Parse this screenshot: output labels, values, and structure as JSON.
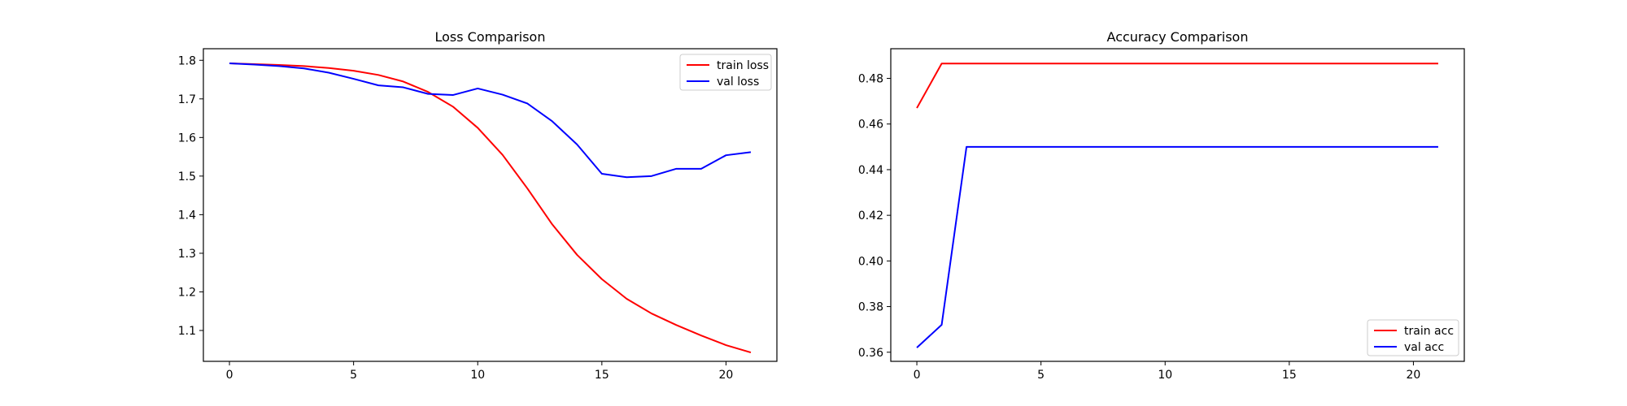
{
  "colors": {
    "red": "#ff0000",
    "blue": "#0000ff",
    "axes": "#000000",
    "legend_border": "#cccccc"
  },
  "chart_data": [
    {
      "type": "line",
      "title": "Loss Comparison",
      "xlabel": "",
      "ylabel": "",
      "xlim": [
        -1.05,
        22.05
      ],
      "ylim": [
        1.02,
        1.83
      ],
      "xticks": [
        0,
        5,
        10,
        15,
        20
      ],
      "yticks": [
        1.1,
        1.2,
        1.3,
        1.4,
        1.5,
        1.6,
        1.7,
        1.8
      ],
      "legend": "top-right",
      "grid": false,
      "x": [
        0,
        1,
        2,
        3,
        4,
        5,
        6,
        7,
        8,
        9,
        10,
        11,
        12,
        13,
        14,
        15,
        16,
        17,
        18,
        19,
        20,
        21
      ],
      "series": [
        {
          "name": "train loss",
          "color": "#ff0000",
          "values": [
            1.792,
            1.79,
            1.788,
            1.785,
            1.78,
            1.773,
            1.762,
            1.745,
            1.718,
            1.68,
            1.625,
            1.555,
            1.468,
            1.375,
            1.296,
            1.233,
            1.182,
            1.144,
            1.114,
            1.087,
            1.062,
            1.043
          ]
        },
        {
          "name": "val loss",
          "color": "#0000ff",
          "values": [
            1.792,
            1.789,
            1.785,
            1.779,
            1.768,
            1.752,
            1.735,
            1.73,
            1.713,
            1.71,
            1.727,
            1.711,
            1.688,
            1.642,
            1.582,
            1.506,
            1.497,
            1.5,
            1.519,
            1.519,
            1.554,
            1.562
          ]
        }
      ]
    },
    {
      "type": "line",
      "title": "Accuracy Comparison",
      "xlabel": "",
      "ylabel": "",
      "xlim": [
        -1.05,
        22.05
      ],
      "ylim": [
        0.356,
        0.493
      ],
      "xticks": [
        0,
        5,
        10,
        15,
        20
      ],
      "yticks": [
        0.36,
        0.38,
        0.4,
        0.42,
        0.44,
        0.46,
        0.48
      ],
      "ytick_labels": [
        "0.36",
        "0.38",
        "0.40",
        "0.42",
        "0.44",
        "0.46",
        "0.48"
      ],
      "legend": "bottom-right",
      "grid": false,
      "x": [
        0,
        1,
        2,
        3,
        4,
        5,
        6,
        7,
        8,
        9,
        10,
        11,
        12,
        13,
        14,
        15,
        16,
        17,
        18,
        19,
        20,
        21
      ],
      "series": [
        {
          "name": "train acc",
          "color": "#ff0000",
          "values": [
            0.467,
            0.4865,
            0.4865,
            0.4865,
            0.4865,
            0.4865,
            0.4865,
            0.4865,
            0.4865,
            0.4865,
            0.4865,
            0.4865,
            0.4865,
            0.4865,
            0.4865,
            0.4865,
            0.4865,
            0.4865,
            0.4865,
            0.4865,
            0.4865,
            0.4865
          ]
        },
        {
          "name": "val acc",
          "color": "#0000ff",
          "values": [
            0.362,
            0.372,
            0.45,
            0.45,
            0.45,
            0.45,
            0.45,
            0.45,
            0.45,
            0.45,
            0.45,
            0.45,
            0.45,
            0.45,
            0.45,
            0.45,
            0.45,
            0.45,
            0.45,
            0.45,
            0.45,
            0.45
          ]
        }
      ]
    }
  ]
}
